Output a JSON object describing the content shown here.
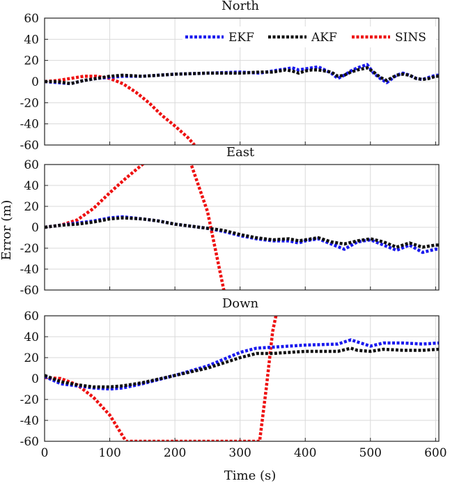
{
  "chart_data": {
    "type": "line",
    "xlabel": "Time (s)",
    "ylabel": "Error (m)",
    "xlim": [
      0,
      605
    ],
    "ylim": [
      -60,
      60
    ],
    "xticks": [
      0,
      100,
      200,
      300,
      400,
      500,
      600
    ],
    "yticks": [
      -60,
      -40,
      -20,
      0,
      20,
      40,
      60
    ],
    "grid": true,
    "legend": {
      "placement": "top-right of first panel",
      "entries": [
        "EKF",
        "AKF",
        "SINS"
      ]
    },
    "colors": {
      "EKF": "#1a1aee",
      "AKF": "#111111",
      "SINS": "#ee1111"
    },
    "panels": [
      {
        "title": "North",
        "series": [
          {
            "name": "EKF",
            "x": [
              0,
              20,
              40,
              60,
              80,
              100,
              120,
              150,
              200,
              250,
              300,
              330,
              350,
              370,
              380,
              390,
              400,
              410,
              420,
              440,
              450,
              460,
              470,
              480,
              495,
              505,
              515,
              525,
              540,
              550,
              560,
              570,
              580,
              590,
              600,
              605
            ],
            "y": [
              0,
              -1,
              -2,
              1,
              3,
              4,
              5,
              5,
              7,
              8,
              9,
              8,
              10,
              12,
              13,
              11,
              12,
              13,
              14,
              8,
              3,
              6,
              10,
              13,
              16,
              8,
              3,
              -1,
              6,
              8,
              6,
              3,
              2,
              4,
              6,
              6
            ]
          },
          {
            "name": "AKF",
            "x": [
              0,
              20,
              40,
              60,
              80,
              100,
              120,
              150,
              200,
              250,
              300,
              330,
              350,
              370,
              380,
              390,
              400,
              410,
              420,
              440,
              450,
              460,
              470,
              480,
              495,
              505,
              515,
              525,
              540,
              550,
              560,
              570,
              580,
              590,
              600,
              605
            ],
            "y": [
              0,
              0,
              -2,
              1,
              3,
              5,
              6,
              5,
              7,
              8,
              8,
              9,
              9,
              11,
              10,
              8,
              10,
              11,
              11,
              9,
              5,
              6,
              9,
              11,
              13,
              9,
              4,
              1,
              6,
              7,
              6,
              3,
              2,
              3,
              5,
              5
            ]
          },
          {
            "name": "SINS",
            "x": [
              0,
              20,
              40,
              60,
              80,
              100,
              120,
              140,
              160,
              180,
              200,
              220,
              230
            ],
            "y": [
              0,
              1,
              3,
              5,
              5,
              3,
              -2,
              -10,
              -20,
              -32,
              -42,
              -53,
              -60
            ]
          }
        ]
      },
      {
        "title": "East",
        "series": [
          {
            "name": "EKF",
            "x": [
              0,
              25,
              50,
              75,
              100,
              120,
              150,
              175,
              200,
              225,
              250,
              275,
              300,
              325,
              350,
              375,
              390,
              400,
              420,
              440,
              460,
              480,
              500,
              520,
              540,
              560,
              580,
              600,
              605
            ],
            "y": [
              0,
              2,
              4,
              6,
              9,
              10,
              8,
              6,
              3,
              1,
              -1,
              -4,
              -8,
              -11,
              -13,
              -13,
              -15,
              -13,
              -11,
              -16,
              -21,
              -14,
              -12,
              -17,
              -22,
              -17,
              -24,
              -21,
              -21
            ]
          },
          {
            "name": "AKF",
            "x": [
              0,
              25,
              50,
              75,
              100,
              120,
              150,
              175,
              200,
              225,
              250,
              275,
              300,
              325,
              350,
              375,
              390,
              400,
              420,
              440,
              460,
              480,
              500,
              520,
              540,
              560,
              580,
              600,
              605
            ],
            "y": [
              0,
              2,
              3,
              5,
              8,
              9,
              8,
              6,
              3,
              1,
              -1,
              -3,
              -7,
              -10,
              -12,
              -11,
              -13,
              -12,
              -10,
              -14,
              -16,
              -13,
              -11,
              -14,
              -19,
              -15,
              -19,
              -17,
              -17
            ]
          },
          {
            "name": "SINS",
            "x": [
              0,
              25,
              50,
              75,
              100,
              125,
              150,
              175,
              200,
              225,
              250,
              275
            ],
            "y": [
              0,
              2,
              7,
              18,
              33,
              47,
              60,
              72,
              80,
              60,
              15,
              -60
            ]
          }
        ]
      },
      {
        "title": "Down",
        "series": [
          {
            "name": "EKF",
            "x": [
              0,
              25,
              50,
              75,
              100,
              120,
              150,
              200,
              250,
              300,
              325,
              350,
              400,
              450,
              470,
              480,
              500,
              520,
              550,
              580,
              605
            ],
            "y": [
              2,
              -5,
              -7,
              -9,
              -10,
              -9,
              -5,
              3,
              12,
              25,
              29,
              30,
              32,
              33,
              37,
              35,
              31,
              34,
              34,
              33,
              34
            ]
          },
          {
            "name": "AKF",
            "x": [
              0,
              25,
              50,
              75,
              100,
              120,
              150,
              200,
              250,
              300,
              325,
              350,
              400,
              450,
              470,
              480,
              500,
              520,
              550,
              580,
              605
            ],
            "y": [
              3,
              -3,
              -6,
              -8,
              -8,
              -7,
              -4,
              3,
              10,
              20,
              24,
              24,
              26,
              26,
              29,
              27,
              26,
              28,
              27,
              27,
              28
            ]
          },
          {
            "name": "SINS",
            "x": [
              0,
              25,
              50,
              75,
              100,
              125,
              330,
              340,
              350,
              355
            ],
            "y": [
              1,
              0,
              -6,
              -18,
              -35,
              -60,
              -60,
              -10,
              45,
              60
            ]
          }
        ]
      }
    ]
  }
}
